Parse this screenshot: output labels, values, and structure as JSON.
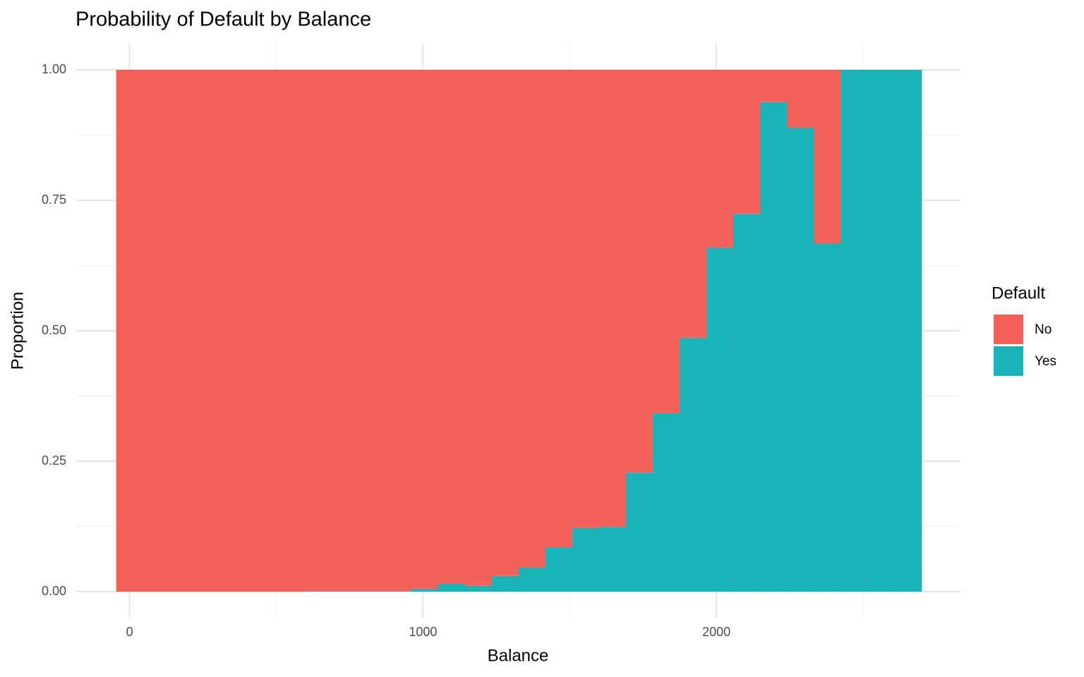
{
  "chart_data": {
    "type": "histogram",
    "position": "fill",
    "title": "Probability of Default by Balance",
    "x_label": "Balance",
    "y_label": "Proportion",
    "legend_title": "Default",
    "bins": [
      -45.75,
      45.75,
      137.25,
      228.75,
      320.25,
      411.75,
      503.25,
      594.75,
      686.25,
      777.75,
      869.25,
      960.75,
      1052.25,
      1143.75,
      1235.25,
      1326.75,
      1418.25,
      1509.75,
      1601.25,
      1692.75,
      1784.25,
      1875.75,
      1967.25,
      2058.75,
      2150.25,
      2241.75,
      2333.25,
      2424.75,
      2516.25,
      2607.75,
      2699.25
    ],
    "series": [
      {
        "name": "No",
        "color": "#f2615b",
        "values": [
          1,
          1,
          1,
          1,
          1,
          1,
          1,
          0.999,
          0.999,
          0.999,
          0.999,
          0.995,
          0.985,
          0.989,
          0.97,
          0.954,
          0.915,
          0.878,
          0.876,
          0.772,
          0.658,
          0.514,
          0.341,
          0.276,
          0.062,
          0.111,
          0.333,
          0,
          0,
          0
        ]
      },
      {
        "name": "Yes",
        "color": "#1ab3b8",
        "values": [
          0,
          0,
          0,
          0,
          0,
          0,
          0,
          0.001,
          0.001,
          0.001,
          0.001,
          0.005,
          0.015,
          0.011,
          0.03,
          0.046,
          0.085,
          0.122,
          0.124,
          0.228,
          0.342,
          0.486,
          0.659,
          0.724,
          0.938,
          0.889,
          0.667,
          1,
          1,
          1
        ]
      }
    ],
    "stack_order": [
      "Yes",
      "No"
    ],
    "xlim": [
      -182,
      2832
    ],
    "xticks": [
      0,
      1000,
      2000
    ],
    "xminor": [
      500,
      1500,
      2500
    ],
    "ylim": [
      -0.05,
      1.05
    ],
    "yticks": [
      {
        "value": 0,
        "label": "0.00"
      },
      {
        "value": 0.25,
        "label": "0.25"
      },
      {
        "value": 0.5,
        "label": "0.50"
      },
      {
        "value": 0.75,
        "label": "0.75"
      },
      {
        "value": 1,
        "label": "1.00"
      }
    ],
    "yminor": [
      0.125,
      0.375,
      0.625,
      0.875
    ],
    "grid": true,
    "legend_position": "right"
  }
}
